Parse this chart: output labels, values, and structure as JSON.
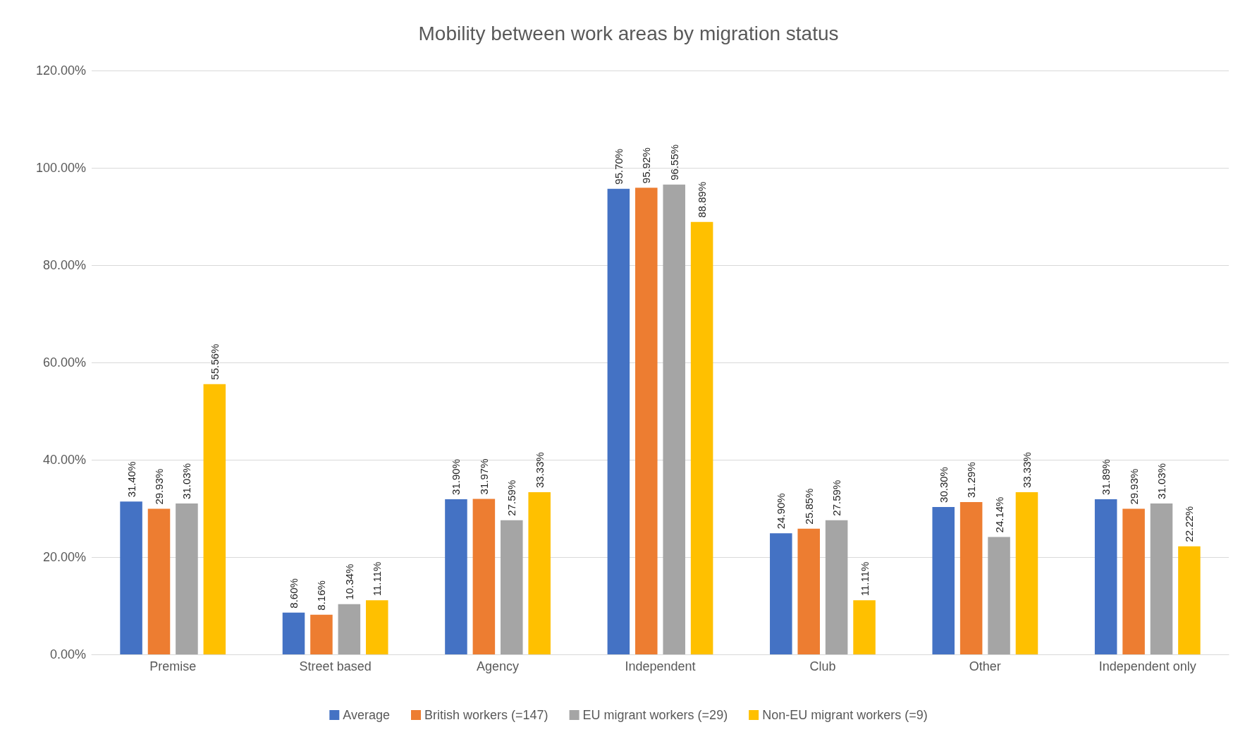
{
  "chart_data": {
    "type": "bar",
    "title": "Mobility between work areas by migration status",
    "categories": [
      "Premise",
      "Street based",
      "Agency",
      "Independent",
      "Club",
      "Other",
      "Independent only"
    ],
    "series": [
      {
        "name": "Average",
        "color": "#4472c4",
        "values": [
          31.4,
          8.6,
          31.9,
          95.7,
          24.9,
          30.3,
          31.89
        ],
        "value_labels": [
          "31.40%",
          "8.60%",
          "31.90%",
          "95.70%",
          "24.90%",
          "30.30%",
          "31.89%"
        ]
      },
      {
        "name": "British workers (=147)",
        "color": "#ed7d31",
        "values": [
          29.93,
          8.16,
          31.97,
          95.92,
          25.85,
          31.29,
          29.93
        ],
        "value_labels": [
          "29.93%",
          "8.16%",
          "31.97%",
          "95.92%",
          "25.85%",
          "31.29%",
          "29.93%"
        ]
      },
      {
        "name": "EU migrant workers (=29)",
        "color": "#a5a5a5",
        "values": [
          31.03,
          10.34,
          27.59,
          96.55,
          27.59,
          24.14,
          31.03
        ],
        "value_labels": [
          "31.03%",
          "10.34%",
          "27.59%",
          "96.55%",
          "27.59%",
          "24.14%",
          "31.03%"
        ]
      },
      {
        "name": "Non-EU migrant workers (=9)",
        "color": "#ffc000",
        "values": [
          55.56,
          11.11,
          33.33,
          88.89,
          11.11,
          33.33,
          22.22
        ],
        "value_labels": [
          "55.56%",
          "11.11%",
          "33.33%",
          "88.89%",
          "11.11%",
          "33.33%",
          "22.22%"
        ]
      }
    ],
    "ylim": [
      0,
      120
    ],
    "yticks": [
      {
        "value": 0,
        "label": "0.00%"
      },
      {
        "value": 20,
        "label": "20.00%"
      },
      {
        "value": 40,
        "label": "40.00%"
      },
      {
        "value": 60,
        "label": "60.00%"
      },
      {
        "value": 80,
        "label": "80.00%"
      },
      {
        "value": 100,
        "label": "100.00%"
      },
      {
        "value": 120,
        "label": "120.00%"
      }
    ],
    "grid": "y",
    "legend": "bottom"
  }
}
